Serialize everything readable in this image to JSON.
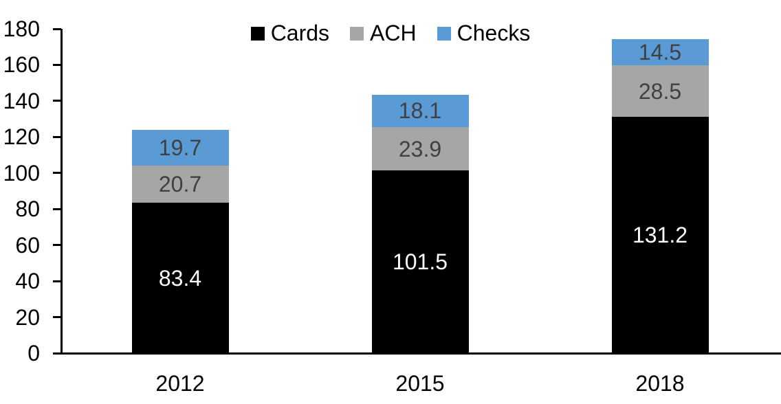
{
  "chart_data": {
    "type": "bar",
    "stacked": true,
    "categories": [
      "2012",
      "2015",
      "2018"
    ],
    "series": [
      {
        "name": "Cards",
        "color": "#000000",
        "label_color": "#ffffff",
        "values": [
          83.4,
          101.5,
          131.2
        ]
      },
      {
        "name": "ACH",
        "color": "#a6a6a6",
        "label_color": "#404040",
        "values": [
          20.7,
          23.9,
          28.5
        ]
      },
      {
        "name": "Checks",
        "color": "#5b9bd5",
        "label_color": "#404040",
        "values": [
          19.7,
          18.1,
          14.5
        ]
      }
    ],
    "totals": [
      123.8,
      143.5,
      174.2
    ],
    "xlabel": "",
    "ylabel": "",
    "ylim": [
      0,
      180
    ],
    "yticks": [
      0,
      20,
      40,
      60,
      80,
      100,
      120,
      140,
      160,
      180
    ],
    "grid": false,
    "legend_position": "top-center",
    "axis_color": "#000000",
    "background_color": "#ffffff"
  }
}
